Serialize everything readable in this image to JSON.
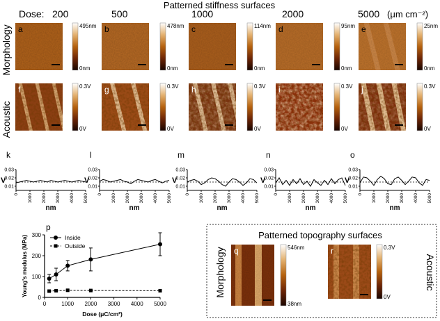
{
  "header": {
    "title": "Patterned stiffness surfaces",
    "dose_label": "Dose:",
    "unit_label": "(μm  cm⁻²)",
    "doses": [
      "200",
      "500",
      "1000",
      "2000",
      "5000"
    ]
  },
  "row_labels": {
    "morphology": "Morphology",
    "acoustic": "Acoustic"
  },
  "morphology_panels": [
    {
      "letter": "a",
      "max": "495nm",
      "min": "0nm"
    },
    {
      "letter": "b",
      "max": "478nm",
      "min": "0nm"
    },
    {
      "letter": "c",
      "max": "114nm",
      "min": "0nm"
    },
    {
      "letter": "d",
      "max": "95nm",
      "min": "0nm"
    },
    {
      "letter": "e",
      "max": "25nm",
      "min": "0nm"
    }
  ],
  "acoustic_panels": [
    {
      "letter": "f",
      "max": "0.3V",
      "min": "0V"
    },
    {
      "letter": "g",
      "max": "0.3V",
      "min": "0V"
    },
    {
      "letter": "h",
      "max": "0.3V",
      "min": "0V"
    },
    {
      "letter": "i",
      "max": "0.3V",
      "min": "0V"
    },
    {
      "letter": "j",
      "max": "0.3V",
      "min": "0V"
    }
  ],
  "profile_panels": [
    {
      "letter": "k"
    },
    {
      "letter": "l"
    },
    {
      "letter": "m"
    },
    {
      "letter": "n"
    },
    {
      "letter": "o"
    }
  ],
  "profile_axes": {
    "ylabel": "V",
    "xlabel": "nm",
    "yticks": [
      "0.01",
      "0.02",
      "0.03"
    ],
    "xticks": [
      "0",
      "1000",
      "2000",
      "3000",
      "4000",
      "5000"
    ]
  },
  "modulus_plot": {
    "letter": "p",
    "xlabel": "Dose (μC/cm²)",
    "ylabel": "Young's modulus (MPa)",
    "xticks": [
      "0",
      "1000",
      "2000",
      "3000",
      "4000",
      "5000"
    ],
    "yticks": [
      "0",
      "100",
      "200",
      "300"
    ],
    "legend": [
      "Inside",
      "Outside"
    ]
  },
  "topography_inset": {
    "title": "Patterned topography surfaces",
    "morphology_label": "Morphology",
    "acoustic_label": "Acoustic",
    "q": {
      "letter": "q",
      "max": "546nm",
      "min": "38nm"
    },
    "r": {
      "letter": "r",
      "max": "0.3V",
      "min": "0V"
    }
  },
  "chart_data": [
    {
      "type": "line",
      "xlabel": "nm",
      "ylabel": "V",
      "xlim": [
        0,
        5000
      ],
      "ylim": [
        0.005,
        0.03
      ],
      "series": [
        {
          "x": [
            0,
            250,
            500,
            750,
            1000,
            1250,
            1500,
            1750,
            2000,
            2250,
            2500,
            2750,
            3000,
            3250,
            3500,
            3750,
            4000,
            4250,
            4500,
            4750,
            5000
          ],
          "values": [
            0.014,
            0.015,
            0.016,
            0.017,
            0.016,
            0.015,
            0.016,
            0.017,
            0.016,
            0.015,
            0.017,
            0.016,
            0.015,
            0.016,
            0.017,
            0.016,
            0.015,
            0.016,
            0.017,
            0.016,
            0.015
          ]
        },
        {
          "x": [
            0,
            250,
            500,
            750,
            1000,
            1250,
            1500,
            1750,
            2000,
            2250,
            2500,
            2750,
            3000,
            3250,
            3500,
            3750,
            4000,
            4250,
            4500,
            4750,
            5000
          ],
          "values": [
            0.016,
            0.018,
            0.017,
            0.015,
            0.016,
            0.017,
            0.018,
            0.016,
            0.015,
            0.013,
            0.016,
            0.018,
            0.017,
            0.016,
            0.015,
            0.017,
            0.018,
            0.016,
            0.014,
            0.016,
            0.017
          ]
        },
        {
          "x": [
            0,
            250,
            500,
            750,
            1000,
            1250,
            1500,
            1750,
            2000,
            2250,
            2500,
            2750,
            3000,
            3250,
            3500,
            3750,
            4000,
            4250,
            4500,
            4750,
            5000
          ],
          "values": [
            0.015,
            0.017,
            0.018,
            0.016,
            0.012,
            0.014,
            0.018,
            0.02,
            0.019,
            0.016,
            0.012,
            0.01,
            0.015,
            0.019,
            0.018,
            0.015,
            0.011,
            0.014,
            0.019,
            0.018,
            0.014
          ]
        },
        {
          "x": [
            0,
            250,
            500,
            750,
            1000,
            1250,
            1500,
            1750,
            2000,
            2250,
            2500,
            2750,
            3000,
            3250,
            3500,
            3750,
            4000,
            4250,
            4500,
            4750,
            5000
          ],
          "values": [
            0.014,
            0.02,
            0.012,
            0.017,
            0.011,
            0.018,
            0.013,
            0.019,
            0.012,
            0.016,
            0.01,
            0.018,
            0.014,
            0.011,
            0.017,
            0.012,
            0.019,
            0.013,
            0.018,
            0.02,
            0.011
          ]
        },
        {
          "x": [
            0,
            250,
            500,
            750,
            1000,
            1250,
            1500,
            1750,
            2000,
            2250,
            2500,
            2750,
            3000,
            3250,
            3500,
            3750,
            4000,
            4250,
            4500,
            4750,
            5000
          ],
          "values": [
            0.014,
            0.021,
            0.02,
            0.016,
            0.011,
            0.018,
            0.022,
            0.019,
            0.013,
            0.012,
            0.019,
            0.021,
            0.017,
            0.012,
            0.016,
            0.021,
            0.02,
            0.014,
            0.011,
            0.018,
            0.017
          ]
        }
      ]
    },
    {
      "type": "line",
      "xlabel": "Dose (μC/cm²)",
      "ylabel": "Young's modulus (MPa)",
      "xlim": [
        0,
        5000
      ],
      "ylim": [
        0,
        300
      ],
      "x": [
        200,
        500,
        1000,
        2000,
        5000
      ],
      "series": [
        {
          "name": "Inside",
          "values": [
            90,
            110,
            152,
            182,
            255
          ],
          "errors": [
            20,
            30,
            25,
            55,
            55
          ]
        },
        {
          "name": "Outside",
          "values": [
            30,
            32,
            34,
            33,
            32
          ],
          "errors": [
            3,
            3,
            3,
            3,
            3
          ]
        }
      ]
    }
  ]
}
